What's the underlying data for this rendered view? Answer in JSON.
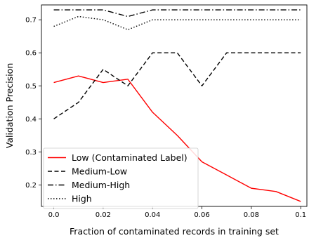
{
  "chart_data": {
    "type": "line",
    "title": "",
    "xlabel": "Fraction of contaminated records in training set",
    "ylabel": "Validation Precision",
    "xlim": [
      -0.005,
      0.1025
    ],
    "ylim": [
      0.135,
      0.745
    ],
    "xticks": [
      0.0,
      0.02,
      0.04,
      0.06,
      0.08,
      0.1
    ],
    "xtick_labels": [
      "0.0",
      "0.02",
      "0.04",
      "0.06",
      "0.08",
      "0.1"
    ],
    "yticks": [
      0.2,
      0.3,
      0.4,
      0.5,
      0.6,
      0.7
    ],
    "ytick_labels": [
      "0.2",
      "0.3",
      "0.4",
      "0.5",
      "0.6",
      "0.7"
    ],
    "grid": false,
    "legend_position": "lower-left",
    "x": [
      0.0,
      0.01,
      0.02,
      0.03,
      0.04,
      0.05,
      0.06,
      0.07,
      0.08,
      0.09,
      0.1
    ],
    "series": [
      {
        "name": "Low (Contaminated Label)",
        "color": "#ff0000",
        "linestyle": "solid",
        "values": [
          0.51,
          0.53,
          0.51,
          0.52,
          0.42,
          0.35,
          0.27,
          0.23,
          0.19,
          0.18,
          0.15
        ]
      },
      {
        "name": "Medium-Low",
        "color": "#000000",
        "linestyle": "dashed",
        "values": [
          0.4,
          0.45,
          0.55,
          0.5,
          0.6,
          0.6,
          0.5,
          0.6,
          0.6,
          0.6,
          0.6
        ]
      },
      {
        "name": "Medium-High",
        "color": "#000000",
        "linestyle": "dashdot",
        "values": [
          0.73,
          0.73,
          0.73,
          0.71,
          0.73,
          0.73,
          0.73,
          0.73,
          0.73,
          0.73,
          0.73
        ]
      },
      {
        "name": "High",
        "color": "#000000",
        "linestyle": "dotted",
        "values": [
          0.68,
          0.71,
          0.7,
          0.67,
          0.7,
          0.7,
          0.7,
          0.7,
          0.7,
          0.7,
          0.7
        ]
      }
    ]
  }
}
